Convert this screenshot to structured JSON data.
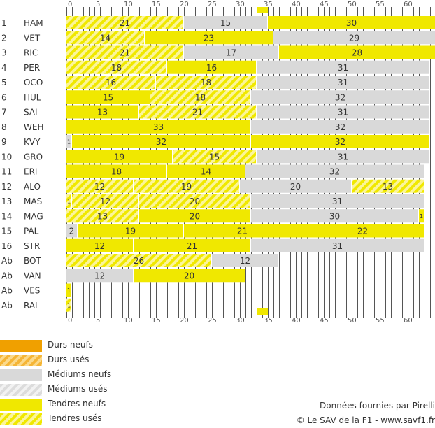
{
  "chart_data": {
    "type": "bar",
    "orientation": "horizontal-stacked",
    "description": "Stratégies pneumatiques",
    "x_ticks": [
      0,
      5,
      10,
      15,
      20,
      25,
      30,
      35,
      40,
      45,
      50,
      55,
      60
    ],
    "xlim": [
      0,
      66
    ],
    "race_laps": 65,
    "compound_names": {
      "soft_new": "Tendres neufs",
      "soft_used": "Tendres usés",
      "medium_new": "Médiums neufs",
      "medium_used": "Médiums usés",
      "hard_new": "Durs neufs",
      "hard_used": "Durs usés"
    },
    "drivers": [
      {
        "pos": "1",
        "code": "HAM",
        "stints": [
          {
            "laps": 21,
            "c": "soft_used"
          },
          {
            "laps": 15,
            "c": "medium_new"
          },
          {
            "laps": 30,
            "c": "soft_new"
          }
        ]
      },
      {
        "pos": "2",
        "code": "VET",
        "stints": [
          {
            "laps": 14,
            "c": "soft_used"
          },
          {
            "laps": 23,
            "c": "soft_new"
          },
          {
            "laps": 29,
            "c": "medium_new"
          }
        ]
      },
      {
        "pos": "3",
        "code": "RIC",
        "stints": [
          {
            "laps": 21,
            "c": "soft_used"
          },
          {
            "laps": 17,
            "c": "medium_new"
          },
          {
            "laps": 28,
            "c": "soft_new"
          }
        ]
      },
      {
        "pos": "4",
        "code": "PER",
        "stints": [
          {
            "laps": 18,
            "c": "soft_used"
          },
          {
            "laps": 16,
            "c": "soft_new"
          },
          {
            "laps": 31,
            "c": "medium_new"
          }
        ]
      },
      {
        "pos": "5",
        "code": "OCO",
        "stints": [
          {
            "laps": 16,
            "c": "soft_used"
          },
          {
            "laps": 18,
            "c": "soft_used"
          },
          {
            "laps": 31,
            "c": "medium_new"
          }
        ]
      },
      {
        "pos": "6",
        "code": "HUL",
        "stints": [
          {
            "laps": 15,
            "c": "soft_new"
          },
          {
            "laps": 18,
            "c": "soft_used"
          },
          {
            "laps": 32,
            "c": "medium_new"
          }
        ]
      },
      {
        "pos": "7",
        "code": "SAI",
        "stints": [
          {
            "laps": 13,
            "c": "soft_new"
          },
          {
            "laps": 21,
            "c": "soft_used"
          },
          {
            "laps": 31,
            "c": "medium_new"
          }
        ]
      },
      {
        "pos": "8",
        "code": "WEH",
        "stints": [
          {
            "laps": 33,
            "c": "soft_new"
          },
          {
            "laps": 32,
            "c": "medium_new"
          }
        ]
      },
      {
        "pos": "9",
        "code": "KVY",
        "stints": [
          {
            "laps": 1,
            "c": "medium_new"
          },
          {
            "laps": 32,
            "c": "soft_new"
          },
          {
            "laps": 32,
            "c": "soft_new"
          }
        ]
      },
      {
        "pos": "10",
        "code": "GRO",
        "stints": [
          {
            "laps": 19,
            "c": "soft_new"
          },
          {
            "laps": 15,
            "c": "soft_used"
          },
          {
            "laps": 31,
            "c": "medium_new"
          }
        ]
      },
      {
        "pos": "11",
        "code": "ERI",
        "stints": [
          {
            "laps": 18,
            "c": "soft_new"
          },
          {
            "laps": 14,
            "c": "soft_new"
          },
          {
            "laps": 32,
            "c": "medium_new"
          }
        ]
      },
      {
        "pos": "12",
        "code": "ALO",
        "stints": [
          {
            "laps": 12,
            "c": "soft_used"
          },
          {
            "laps": 19,
            "c": "soft_used"
          },
          {
            "laps": 20,
            "c": "medium_new"
          },
          {
            "laps": 13,
            "c": "soft_used"
          }
        ]
      },
      {
        "pos": "13",
        "code": "MAS",
        "stints": [
          {
            "laps": 1,
            "c": "soft_used"
          },
          {
            "laps": 12,
            "c": "soft_used"
          },
          {
            "laps": 20,
            "c": "soft_used"
          },
          {
            "laps": 31,
            "c": "medium_new"
          }
        ]
      },
      {
        "pos": "14",
        "code": "MAG",
        "stints": [
          {
            "laps": 13,
            "c": "soft_used"
          },
          {
            "laps": 20,
            "c": "soft_new"
          },
          {
            "laps": 30,
            "c": "medium_new"
          },
          {
            "laps": 1,
            "c": "soft_new"
          }
        ]
      },
      {
        "pos": "15",
        "code": "PAL",
        "stints": [
          {
            "laps": 2,
            "c": "medium_new"
          },
          {
            "laps": 19,
            "c": "soft_new"
          },
          {
            "laps": 21,
            "c": "soft_new"
          },
          {
            "laps": 22,
            "c": "soft_new"
          }
        ]
      },
      {
        "pos": "16",
        "code": "STR",
        "stints": [
          {
            "laps": 12,
            "c": "soft_new"
          },
          {
            "laps": 21,
            "c": "soft_new"
          },
          {
            "laps": 31,
            "c": "medium_new"
          }
        ]
      },
      {
        "pos": "Ab",
        "code": "BOT",
        "stints": [
          {
            "laps": 26,
            "c": "soft_used"
          },
          {
            "laps": 12,
            "c": "medium_new"
          }
        ]
      },
      {
        "pos": "Ab",
        "code": "VAN",
        "stints": [
          {
            "laps": 12,
            "c": "medium_new"
          },
          {
            "laps": 20,
            "c": "soft_new"
          }
        ]
      },
      {
        "pos": "Ab",
        "code": "VES",
        "stints": [
          {
            "laps": 1,
            "c": "soft_new"
          }
        ]
      },
      {
        "pos": "Ab",
        "code": "RAI",
        "stints": [
          {
            "laps": 1,
            "c": "soft_used"
          }
        ]
      }
    ],
    "marker_lap_range": [
      34,
      36
    ]
  },
  "legend": [
    {
      "key": "hard_new",
      "label": "Durs neufs"
    },
    {
      "key": "hard_used",
      "label": "Durs usés"
    },
    {
      "key": "medium_new",
      "label": "Médiums neufs"
    },
    {
      "key": "medium_used",
      "label": "Médiums usés"
    },
    {
      "key": "soft_new",
      "label": "Tendres neufs"
    },
    {
      "key": "soft_used",
      "label": "Tendres usés"
    }
  ],
  "credits": {
    "source": "Données fournies par Pirelli",
    "copyright": "© Le SAV de la F1 - www.savf1.fr"
  },
  "colors": {
    "soft": "#f0e800",
    "soft_light": "#fbf59a",
    "medium": "#d9d9d9",
    "medium_light": "#f2f2f2",
    "hard": "#f0a000",
    "hard_light": "#fbd98a",
    "text": "#333333",
    "tick": "#333333"
  }
}
